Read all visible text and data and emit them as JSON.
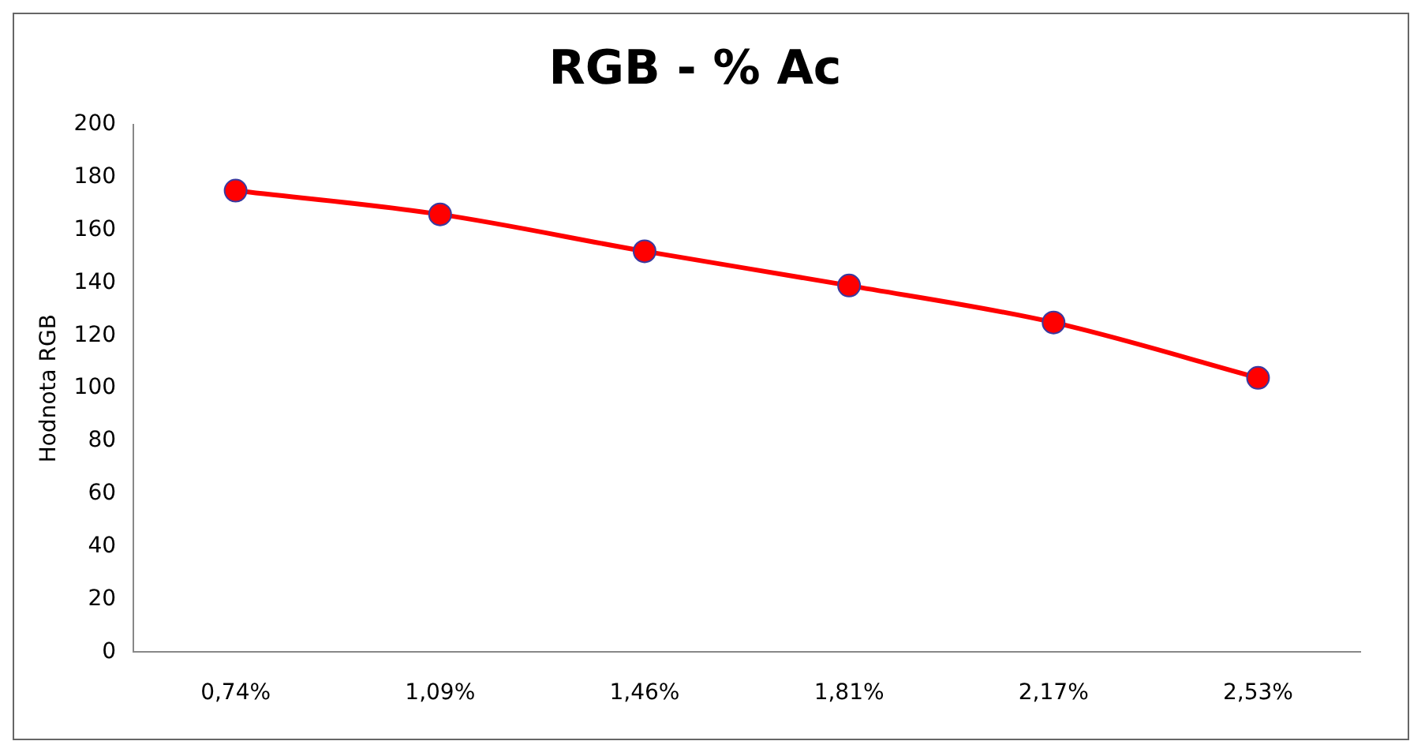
{
  "chart_data": {
    "type": "line",
    "title": "RGB - % Ac",
    "ylabel": "Hodnota RGB",
    "categories": [
      "0,74%",
      "1,09%",
      "1,46%",
      "1,81%",
      "2,17%",
      "2,53%"
    ],
    "series": [
      {
        "color": "#ff0000",
        "values": [
          175,
          166,
          152,
          139,
          125,
          104
        ]
      }
    ],
    "ylim": [
      0,
      200
    ],
    "yticks": [
      0,
      20,
      40,
      60,
      80,
      100,
      120,
      140,
      160,
      180,
      200
    ],
    "grid": false,
    "legend": false,
    "marker": "circle",
    "line_style": "solid"
  }
}
